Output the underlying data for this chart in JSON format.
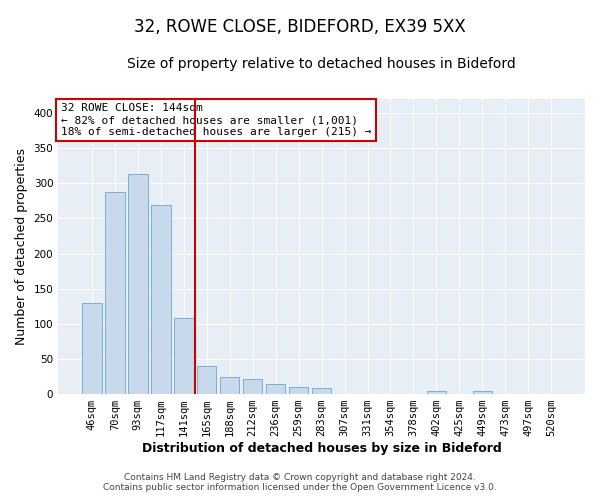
{
  "title": "32, ROWE CLOSE, BIDEFORD, EX39 5XX",
  "subtitle": "Size of property relative to detached houses in Bideford",
  "xlabel": "Distribution of detached houses by size in Bideford",
  "ylabel": "Number of detached properties",
  "footer_line1": "Contains HM Land Registry data © Crown copyright and database right 2024.",
  "footer_line2": "Contains public sector information licensed under the Open Government Licence v3.0.",
  "annotation_line1": "32 ROWE CLOSE: 144sqm",
  "annotation_line2": "← 82% of detached houses are smaller (1,001)",
  "annotation_line3": "18% of semi-detached houses are larger (215) →",
  "bar_labels": [
    "46sqm",
    "70sqm",
    "93sqm",
    "117sqm",
    "141sqm",
    "165sqm",
    "188sqm",
    "212sqm",
    "236sqm",
    "259sqm",
    "283sqm",
    "307sqm",
    "331sqm",
    "354sqm",
    "378sqm",
    "402sqm",
    "425sqm",
    "449sqm",
    "473sqm",
    "497sqm",
    "520sqm"
  ],
  "bar_values": [
    130,
    287,
    313,
    269,
    109,
    40,
    25,
    22,
    14,
    10,
    9,
    0,
    0,
    0,
    0,
    5,
    0,
    5,
    0,
    0,
    0
  ],
  "bar_color": "#c8d9ec",
  "bar_edge_color": "#7aafd4",
  "vline_color": "#cc0000",
  "ylim": [
    0,
    420
  ],
  "yticks": [
    0,
    50,
    100,
    150,
    200,
    250,
    300,
    350,
    400
  ],
  "bg_color": "#ffffff",
  "plot_bg_color": "#e8eef5",
  "grid_color": "#ffffff",
  "title_fontsize": 12,
  "subtitle_fontsize": 10,
  "axis_label_fontsize": 9,
  "tick_fontsize": 7.5,
  "annotation_box_color": "white",
  "annotation_box_edge": "#cc0000",
  "annotation_fontsize": 8,
  "footer_fontsize": 6.5
}
